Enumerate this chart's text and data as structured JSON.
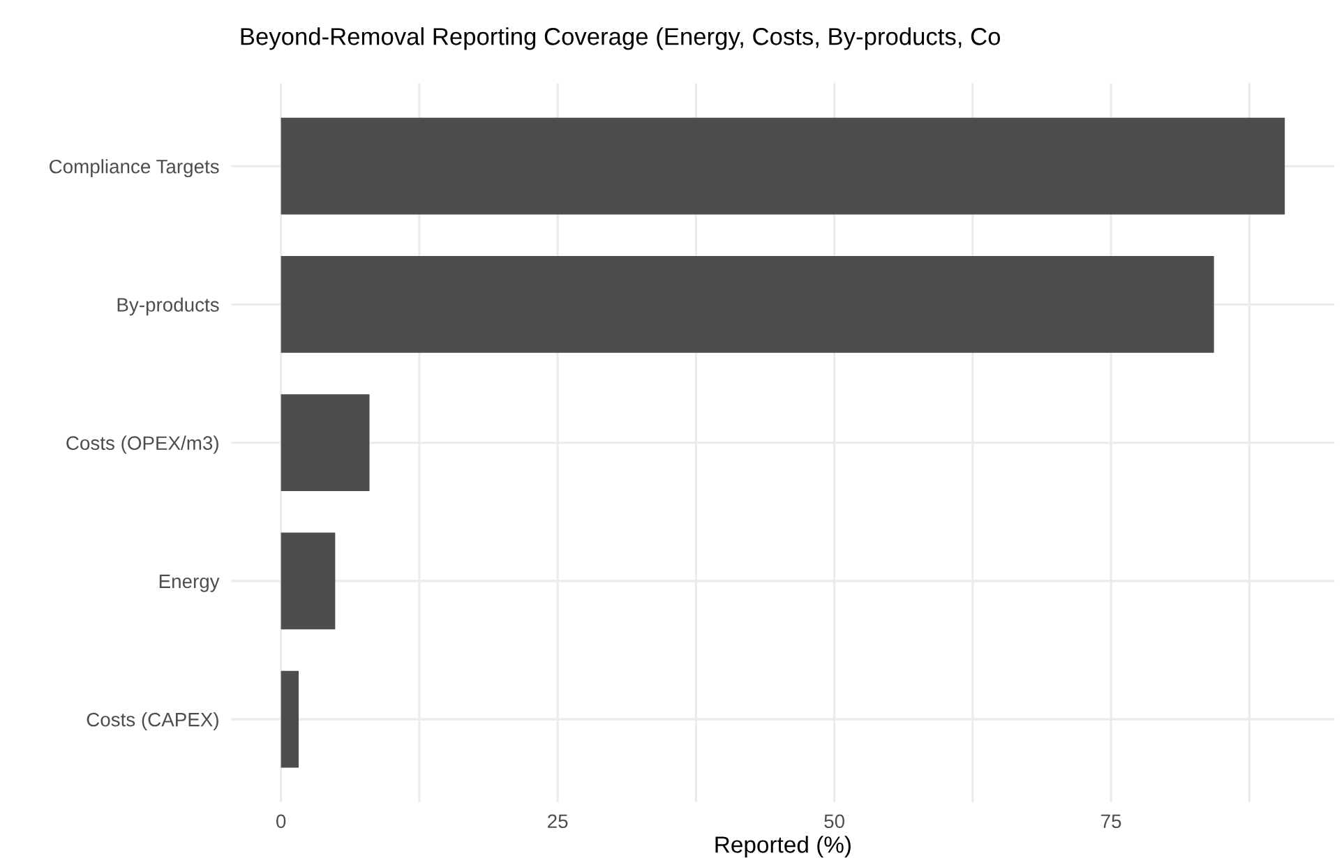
{
  "chart_data": {
    "type": "bar",
    "orientation": "horizontal",
    "title": "Beyond-Removal Reporting Coverage (Energy, Costs, By-products, Co",
    "xlabel": "Reported (%)",
    "categories": [
      "Compliance Targets",
      "By-products",
      "Costs (OPEX/m3)",
      "Energy",
      "Costs (CAPEX)"
    ],
    "values": [
      90.7,
      84.3,
      8.0,
      4.9,
      1.6
    ],
    "color": "#4d4d4d",
    "xlim": [
      -4.5,
      95.2
    ],
    "xticks": [
      0,
      {
        "value": 12.5,
        "label": null
      },
      25,
      {
        "value": 37.5,
        "label": null
      },
      50,
      {
        "value": 62.5,
        "label": null
      },
      75,
      {
        "value": 87.5,
        "label": null
      }
    ],
    "grid": true
  }
}
